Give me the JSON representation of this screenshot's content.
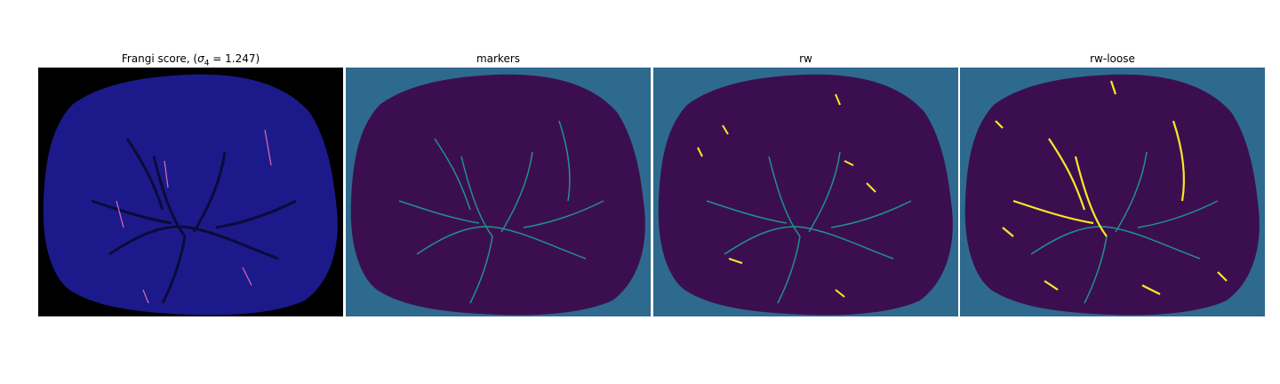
{
  "figure": {
    "panels": [
      {
        "id": "frangi",
        "title_prefix": "Frangi score, (",
        "title_sigma": "σ",
        "title_sub": "4",
        "title_suffix": " = 1.247)",
        "background_color": "#000000",
        "tissue_color": "#1c1a8a",
        "vessel_color": "#0b0b3a",
        "highlight_color": "#e06ab0"
      },
      {
        "id": "markers",
        "title": "markers",
        "background_color": "#2e6a8e",
        "tissue_color": "#3b0f4f",
        "vessel_color": "#2a1040",
        "highlight_color": "#21918c"
      },
      {
        "id": "rw",
        "title": "rw",
        "background_color": "#2e6a8e",
        "tissue_color": "#3b0f4f",
        "vessel_color": "#2a1040",
        "highlight_color": "#21918c",
        "accent_color": "#fde725"
      },
      {
        "id": "rw-loose",
        "title": "rw-loose",
        "background_color": "#2e6a8e",
        "tissue_color": "#3b0f4f",
        "vessel_color": "#2a1040",
        "highlight_color": "#21918c",
        "accent_color": "#fde725"
      }
    ]
  }
}
